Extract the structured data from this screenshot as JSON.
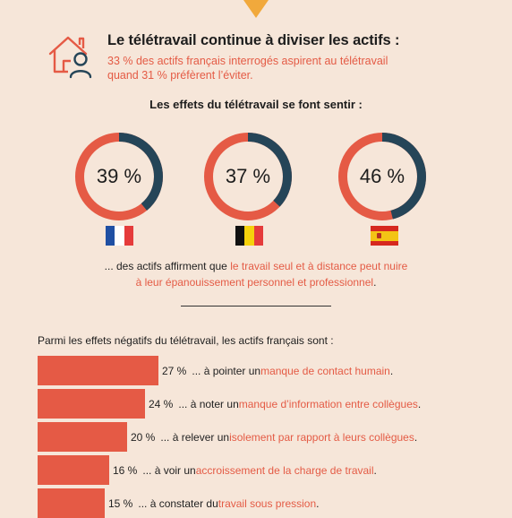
{
  "header": {
    "title": "Le télétravail continue à diviser les actifs :",
    "subtitle_line1": "33 % des actifs français interrogés aspirent au télétravail",
    "subtitle_line2": "quand 31 % préfèrent l’éviter."
  },
  "section_title": "Les effets du télétravail se font sentir :",
  "conclusion": {
    "prefix": "... des actifs affirment que ",
    "highlight_line1": "le travail seul et à distance peut nuire",
    "highlight_line2": "à leur épanouissement personnel et professionnel",
    "suffix": "."
  },
  "negatives_title": "Parmi les effets négatifs du télétravail, les actifs français sont :",
  "colors": {
    "accent": "#e55a45",
    "dark": "#254558",
    "background": "#f6e6d9",
    "arrow": "#f1a93c"
  },
  "chart_data": [
    {
      "type": "pie",
      "categories": [
        "France",
        "Belgique",
        "Espagne"
      ],
      "values": [
        39,
        37,
        46
      ],
      "value_labels": [
        "39 %",
        "37 %",
        "46 %"
      ]
    },
    {
      "type": "bar",
      "title": "Parmi les effets négatifs du télétravail, les actifs français sont :",
      "values": [
        27,
        24,
        20,
        16,
        15
      ],
      "value_labels": [
        "27 %",
        "24 %",
        "20 %",
        "16 %",
        "15 %"
      ],
      "rows": [
        {
          "pre": "... à pointer un ",
          "hl": "manque de contact humain",
          "post": "."
        },
        {
          "pre": "... à noter un ",
          "hl": "manque d’information entre collègues",
          "post": "."
        },
        {
          "pre": "... à relever un ",
          "hl": "isolement par rapport à leurs collègues",
          "post": "."
        },
        {
          "pre": "... à voir un ",
          "hl": "accroissement de la charge de travail",
          "post": "."
        },
        {
          "pre": "... à constater du ",
          "hl": "travail sous pression",
          "post": "."
        }
      ]
    }
  ]
}
